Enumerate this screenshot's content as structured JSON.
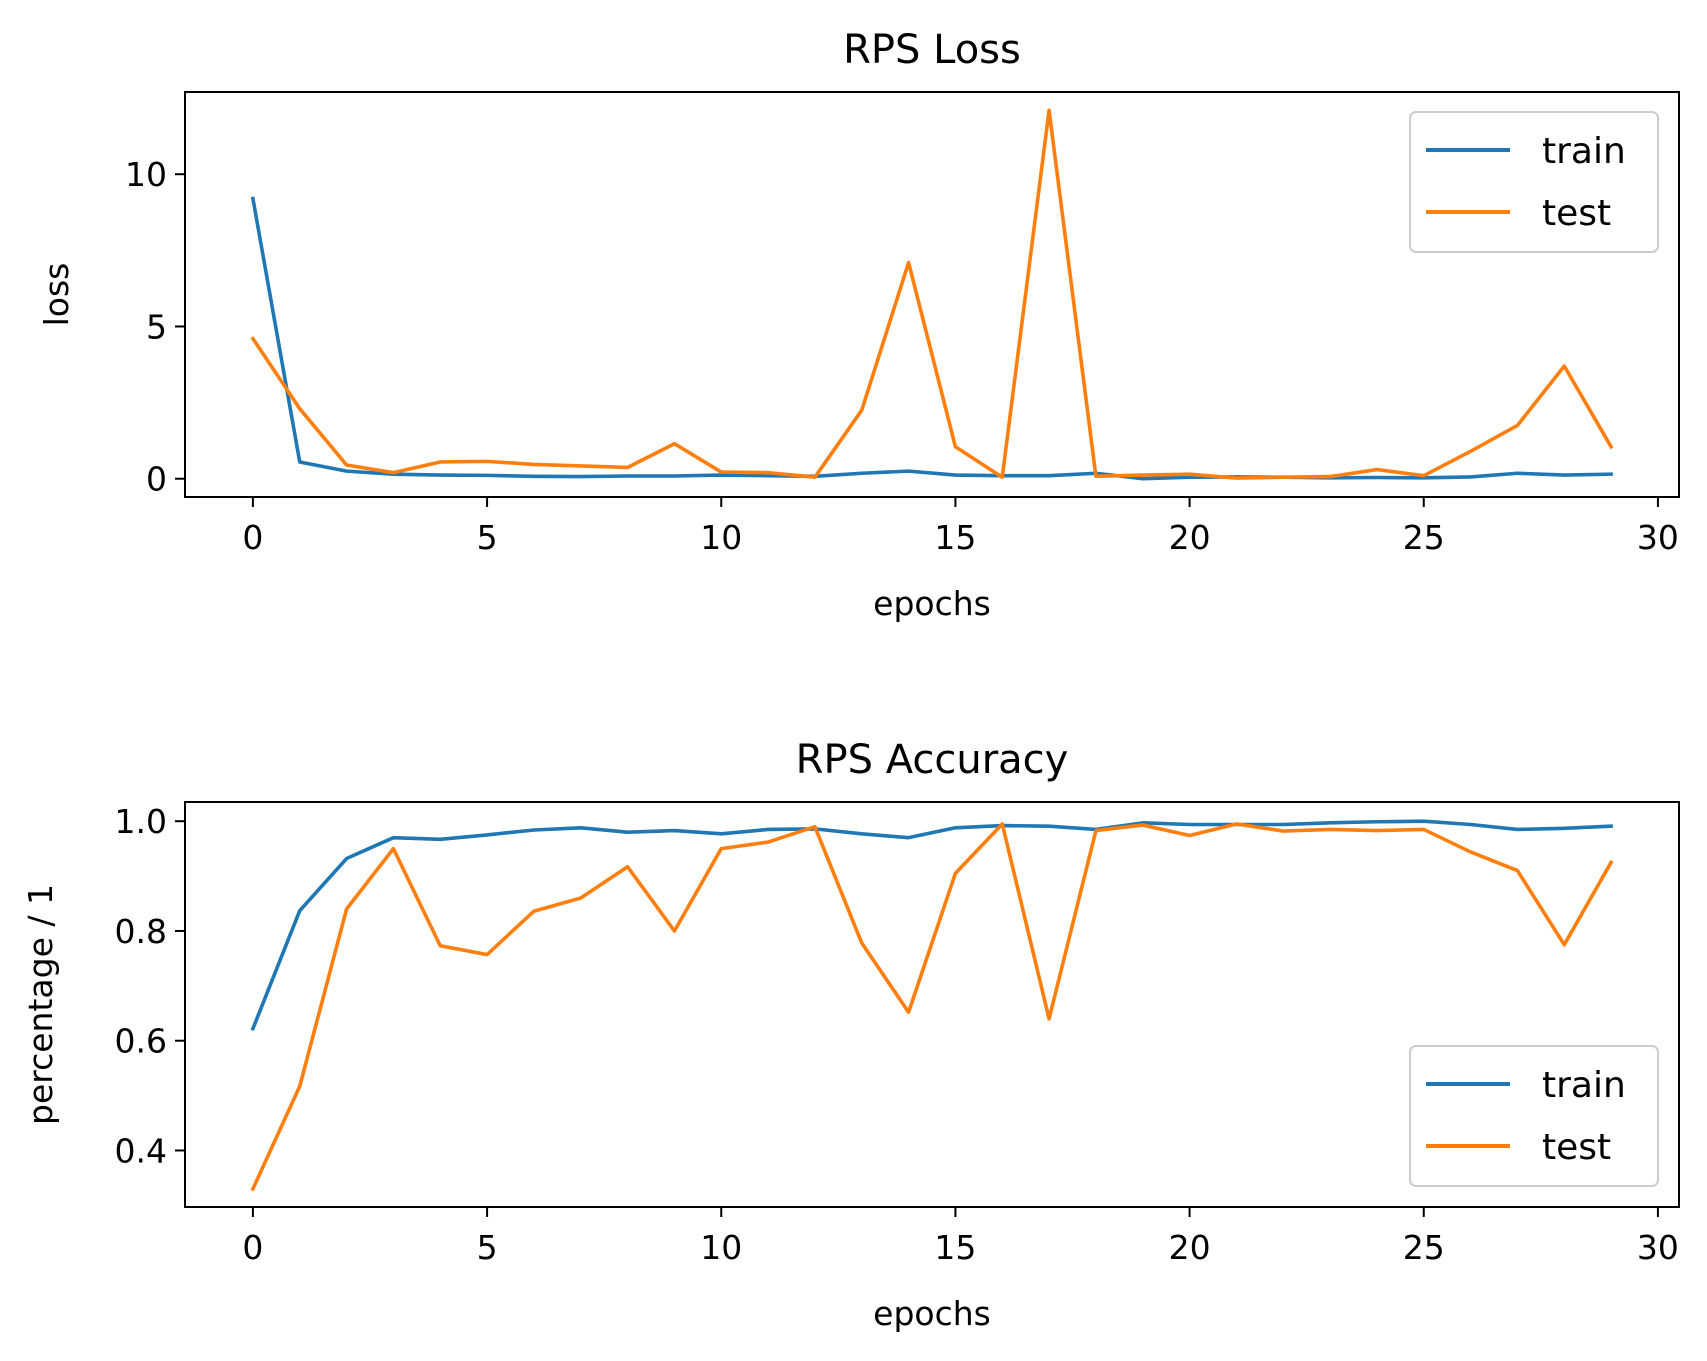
{
  "colors": {
    "train": "#1f77b4",
    "test": "#ff7f0e"
  },
  "chart_data": [
    {
      "type": "line",
      "title": "RPS Loss",
      "xlabel": "epochs",
      "ylabel": "loss",
      "xlim": [
        -1.45,
        30.45
      ],
      "ylim": [
        -0.6,
        12.7
      ],
      "xticks": [
        0,
        5,
        10,
        15,
        20,
        25,
        30
      ],
      "yticks": [
        0,
        5,
        10
      ],
      "legend": "top-right",
      "grid": false,
      "x": [
        0,
        1,
        2,
        3,
        4,
        5,
        6,
        7,
        8,
        9,
        10,
        11,
        12,
        13,
        14,
        15,
        16,
        17,
        18,
        19,
        20,
        21,
        22,
        23,
        24,
        25,
        26,
        27,
        28,
        29
      ],
      "series": [
        {
          "name": "train",
          "color": "#1f77b4",
          "values": [
            9.2,
            0.55,
            0.25,
            0.15,
            0.12,
            0.11,
            0.08,
            0.07,
            0.09,
            0.09,
            0.12,
            0.1,
            0.08,
            0.18,
            0.25,
            0.12,
            0.1,
            0.1,
            0.18,
            0.0,
            0.05,
            0.06,
            0.05,
            0.03,
            0.04,
            0.03,
            0.06,
            0.18,
            0.12,
            0.15
          ]
        },
        {
          "name": "test",
          "color": "#ff7f0e",
          "values": [
            4.6,
            2.3,
            0.45,
            0.2,
            0.55,
            0.57,
            0.47,
            0.42,
            0.37,
            1.15,
            0.22,
            0.2,
            0.05,
            2.25,
            7.1,
            1.05,
            0.05,
            12.1,
            0.08,
            0.12,
            0.15,
            0.02,
            0.05,
            0.07,
            0.3,
            0.1,
            0.9,
            1.75,
            3.7,
            1.05
          ]
        }
      ]
    },
    {
      "type": "line",
      "title": "RPS Accuracy",
      "xlabel": "epochs",
      "ylabel": "percentage / 1",
      "xlim": [
        -1.45,
        30.45
      ],
      "ylim": [
        0.297,
        1.035
      ],
      "xticks": [
        0,
        5,
        10,
        15,
        20,
        25,
        30
      ],
      "yticks": [
        0.4,
        0.6,
        0.8,
        1.0
      ],
      "ytick_labels": [
        "0.4",
        "0.6",
        "0.8",
        "1.0"
      ],
      "legend": "bottom-right",
      "grid": false,
      "x": [
        0,
        1,
        2,
        3,
        4,
        5,
        6,
        7,
        8,
        9,
        10,
        11,
        12,
        13,
        14,
        15,
        16,
        17,
        18,
        19,
        20,
        21,
        22,
        23,
        24,
        25,
        26,
        27,
        28,
        29
      ],
      "series": [
        {
          "name": "train",
          "color": "#1f77b4",
          "values": [
            0.622,
            0.837,
            0.932,
            0.97,
            0.967,
            0.975,
            0.984,
            0.988,
            0.98,
            0.983,
            0.977,
            0.985,
            0.986,
            0.977,
            0.97,
            0.988,
            0.992,
            0.991,
            0.985,
            0.997,
            0.994,
            0.994,
            0.994,
            0.997,
            0.999,
            1.0,
            0.994,
            0.985,
            0.987,
            0.991
          ]
        },
        {
          "name": "test",
          "color": "#ff7f0e",
          "values": [
            0.33,
            0.517,
            0.84,
            0.95,
            0.773,
            0.757,
            0.836,
            0.86,
            0.917,
            0.8,
            0.95,
            0.962,
            0.99,
            0.778,
            0.652,
            0.905,
            0.995,
            0.64,
            0.983,
            0.993,
            0.974,
            0.995,
            0.982,
            0.985,
            0.983,
            0.985,
            0.944,
            0.91,
            0.775,
            0.925
          ]
        }
      ]
    }
  ]
}
